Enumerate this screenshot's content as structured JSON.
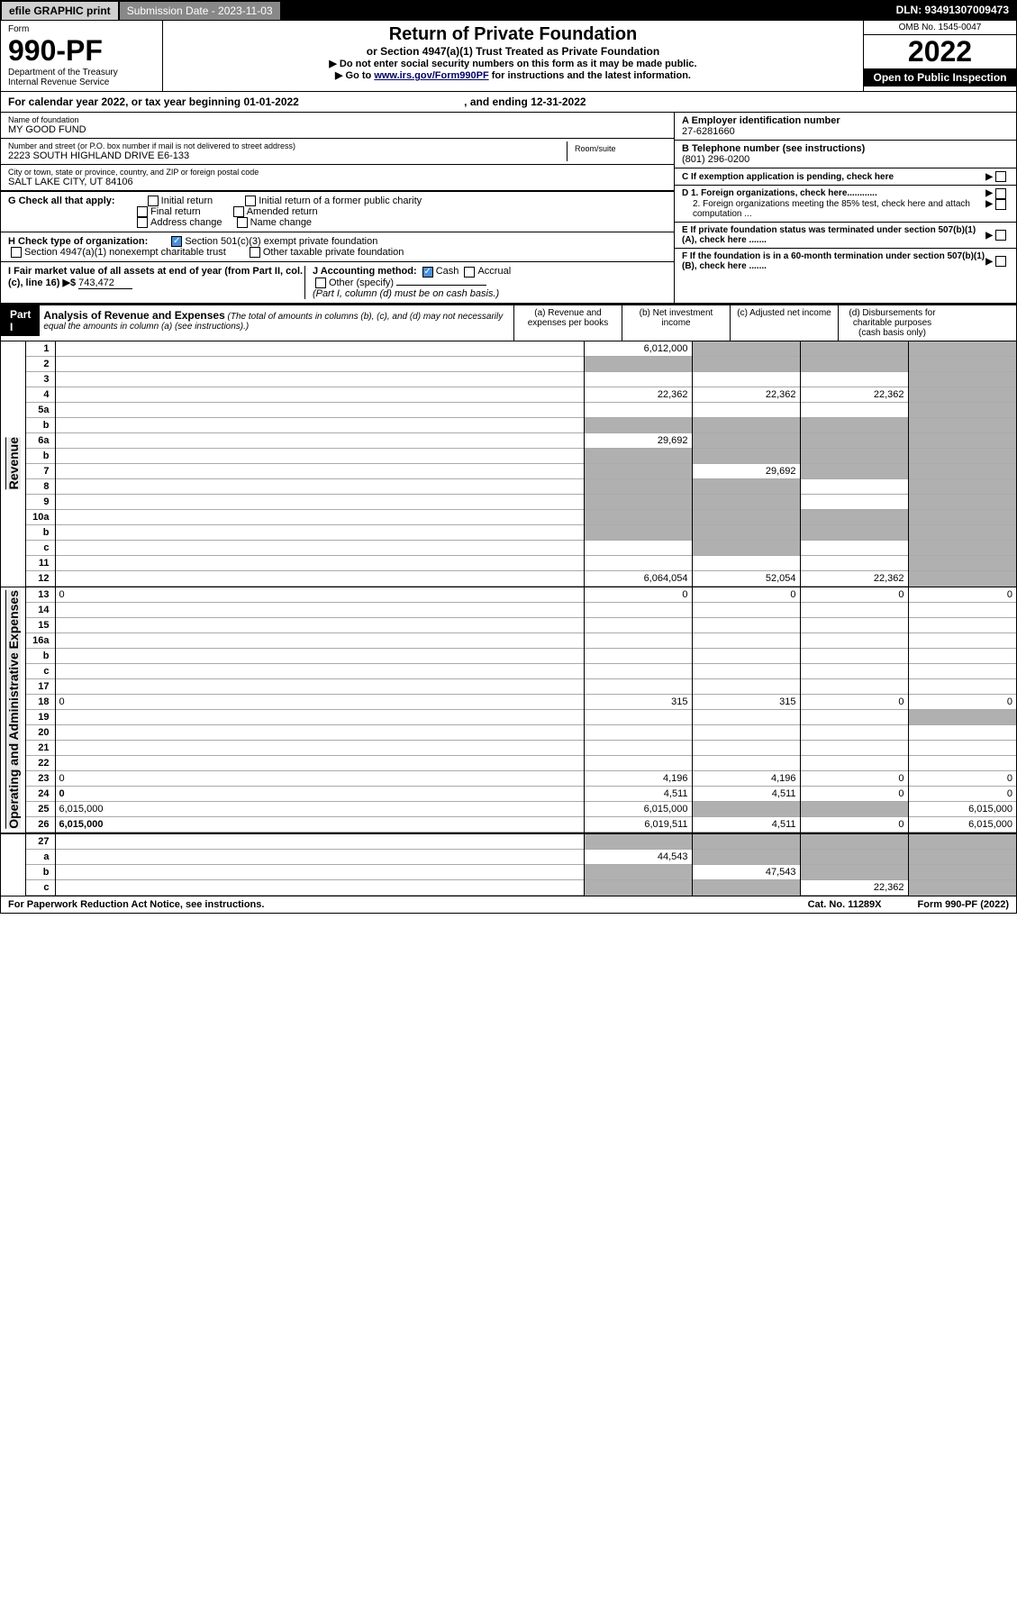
{
  "topbar": {
    "efile": "efile GRAPHIC print",
    "submission": "Submission Date - 2023-11-03",
    "dln": "DLN: 93491307009473"
  },
  "header": {
    "form_label": "Form",
    "form_number": "990-PF",
    "dept1": "Department of the Treasury",
    "dept2": "Internal Revenue Service",
    "title": "Return of Private Foundation",
    "subtitle": "or Section 4947(a)(1) Trust Treated as Private Foundation",
    "instr1": "▶ Do not enter social security numbers on this form as it may be made public.",
    "instr2_pre": "▶ Go to ",
    "instr2_link": "www.irs.gov/Form990PF",
    "instr2_post": " for instructions and the latest information.",
    "omb": "OMB No. 1545-0047",
    "year": "2022",
    "open": "Open to Public Inspection"
  },
  "calendar": {
    "text_pre": "For calendar year 2022, or tax year beginning ",
    "begin": "01-01-2022",
    "text_mid": " , and ending ",
    "end": "12-31-2022"
  },
  "info": {
    "name_label": "Name of foundation",
    "name": "MY GOOD FUND",
    "addr_label": "Number and street (or P.O. box number if mail is not delivered to street address)",
    "addr": "2223 SOUTH HIGHLAND DRIVE E6-133",
    "room_label": "Room/suite",
    "room": "",
    "city_label": "City or town, state or province, country, and ZIP or foreign postal code",
    "city": "SALT LAKE CITY, UT  84106",
    "a_label": "A Employer identification number",
    "a_value": "27-6281660",
    "b_label": "B Telephone number (see instructions)",
    "b_value": "(801) 296-0200",
    "c_label": "C If exemption application is pending, check here",
    "d1_label": "D 1. Foreign organizations, check here............",
    "d2_label": "2. Foreign organizations meeting the 85% test, check here and attach computation ...",
    "e_label": "E  If private foundation status was terminated under section 507(b)(1)(A), check here .......",
    "f_label": "F  If the foundation is in a 60-month termination under section 507(b)(1)(B), check here .......",
    "g_label": "G Check all that apply:",
    "g_opts": [
      "Initial return",
      "Initial return of a former public charity",
      "Final return",
      "Amended return",
      "Address change",
      "Name change"
    ],
    "h_label": "H Check type of organization:",
    "h_opt1": "Section 501(c)(3) exempt private foundation",
    "h_opt2": "Section 4947(a)(1) nonexempt charitable trust",
    "h_opt3": "Other taxable private foundation",
    "i_label": "I Fair market value of all assets at end of year (from Part II, col. (c), line 16) ▶$",
    "i_value": "743,472",
    "j_label": "J Accounting method:",
    "j_cash": "Cash",
    "j_accrual": "Accrual",
    "j_other": "Other (specify)",
    "j_note": "(Part I, column (d) must be on cash basis.)"
  },
  "part1": {
    "label": "Part I",
    "title": "Analysis of Revenue and Expenses",
    "note": "(The total of amounts in columns (b), (c), and (d) may not necessarily equal the amounts in column (a) (see instructions).)",
    "col_a": "(a) Revenue and expenses per books",
    "col_b": "(b) Net investment income",
    "col_c": "(c) Adjusted net income",
    "col_d": "(d) Disbursements for charitable purposes (cash basis only)"
  },
  "sections": {
    "revenue": "Revenue",
    "expenses": "Operating and Administrative Expenses"
  },
  "rows": [
    {
      "n": "1",
      "d": "",
      "a": "6,012,000",
      "b": "",
      "c": "",
      "sb": true,
      "sc": true,
      "sd": true
    },
    {
      "n": "2",
      "d": "",
      "a": "",
      "b": "",
      "c": "",
      "sa": true,
      "sb": true,
      "sc": true,
      "sd": true
    },
    {
      "n": "3",
      "d": "",
      "a": "",
      "b": "",
      "c": "",
      "sd": true
    },
    {
      "n": "4",
      "d": "",
      "a": "22,362",
      "b": "22,362",
      "c": "22,362",
      "sd": true
    },
    {
      "n": "5a",
      "d": "",
      "a": "",
      "b": "",
      "c": "",
      "sd": true
    },
    {
      "n": "b",
      "d": "",
      "a": "",
      "b": "",
      "c": "",
      "sa": true,
      "sb": true,
      "sc": true,
      "sd": true
    },
    {
      "n": "6a",
      "d": "",
      "a": "29,692",
      "b": "",
      "c": "",
      "sb": true,
      "sc": true,
      "sd": true
    },
    {
      "n": "b",
      "d": "",
      "a": "",
      "b": "",
      "c": "",
      "sa": true,
      "sb": true,
      "sc": true,
      "sd": true
    },
    {
      "n": "7",
      "d": "",
      "a": "",
      "b": "29,692",
      "c": "",
      "sa": true,
      "sc": true,
      "sd": true
    },
    {
      "n": "8",
      "d": "",
      "a": "",
      "b": "",
      "c": "",
      "sa": true,
      "sb": true,
      "sd": true
    },
    {
      "n": "9",
      "d": "",
      "a": "",
      "b": "",
      "c": "",
      "sa": true,
      "sb": true,
      "sd": true
    },
    {
      "n": "10a",
      "d": "",
      "a": "",
      "b": "",
      "c": "",
      "sa": true,
      "sb": true,
      "sc": true,
      "sd": true
    },
    {
      "n": "b",
      "d": "",
      "a": "",
      "b": "",
      "c": "",
      "sa": true,
      "sb": true,
      "sc": true,
      "sd": true
    },
    {
      "n": "c",
      "d": "",
      "a": "",
      "b": "",
      "c": "",
      "sb": true,
      "sd": true
    },
    {
      "n": "11",
      "d": "",
      "a": "",
      "b": "",
      "c": "",
      "sd": true
    },
    {
      "n": "12",
      "d": "",
      "a": "6,064,054",
      "b": "52,054",
      "c": "22,362",
      "bold": true,
      "sd": true
    }
  ],
  "exp_rows": [
    {
      "n": "13",
      "d": "0",
      "a": "0",
      "b": "0",
      "c": "0"
    },
    {
      "n": "14",
      "d": "",
      "a": "",
      "b": "",
      "c": ""
    },
    {
      "n": "15",
      "d": "",
      "a": "",
      "b": "",
      "c": ""
    },
    {
      "n": "16a",
      "d": "",
      "a": "",
      "b": "",
      "c": ""
    },
    {
      "n": "b",
      "d": "",
      "a": "",
      "b": "",
      "c": ""
    },
    {
      "n": "c",
      "d": "",
      "a": "",
      "b": "",
      "c": ""
    },
    {
      "n": "17",
      "d": "",
      "a": "",
      "b": "",
      "c": ""
    },
    {
      "n": "18",
      "d": "0",
      "a": "315",
      "b": "315",
      "c": "0"
    },
    {
      "n": "19",
      "d": "",
      "a": "",
      "b": "",
      "c": "",
      "sd": true
    },
    {
      "n": "20",
      "d": "",
      "a": "",
      "b": "",
      "c": ""
    },
    {
      "n": "21",
      "d": "",
      "a": "",
      "b": "",
      "c": ""
    },
    {
      "n": "22",
      "d": "",
      "a": "",
      "b": "",
      "c": ""
    },
    {
      "n": "23",
      "d": "0",
      "a": "4,196",
      "b": "4,196",
      "c": "0"
    },
    {
      "n": "24",
      "d": "0",
      "a": "4,511",
      "b": "4,511",
      "c": "0",
      "bold": true
    },
    {
      "n": "25",
      "d": "6,015,000",
      "a": "6,015,000",
      "b": "",
      "c": "",
      "sb": true,
      "sc": true
    },
    {
      "n": "26",
      "d": "6,015,000",
      "a": "6,019,511",
      "b": "4,511",
      "c": "0",
      "bold": true
    }
  ],
  "bottom_rows": [
    {
      "n": "27",
      "d": "",
      "a": "",
      "b": "",
      "c": "",
      "sa": true,
      "sb": true,
      "sc": true,
      "sd": true
    },
    {
      "n": "a",
      "d": "",
      "a": "44,543",
      "b": "",
      "c": "",
      "bold": true,
      "sb": true,
      "sc": true,
      "sd": true
    },
    {
      "n": "b",
      "d": "",
      "a": "",
      "b": "47,543",
      "c": "",
      "bold": true,
      "sa": true,
      "sc": true,
      "sd": true
    },
    {
      "n": "c",
      "d": "",
      "a": "",
      "b": "",
      "c": "22,362",
      "bold": true,
      "sa": true,
      "sb": true,
      "sd": true
    }
  ],
  "footer": {
    "left": "For Paperwork Reduction Act Notice, see instructions.",
    "mid": "Cat. No. 11289X",
    "right": "Form 990-PF (2022)"
  }
}
